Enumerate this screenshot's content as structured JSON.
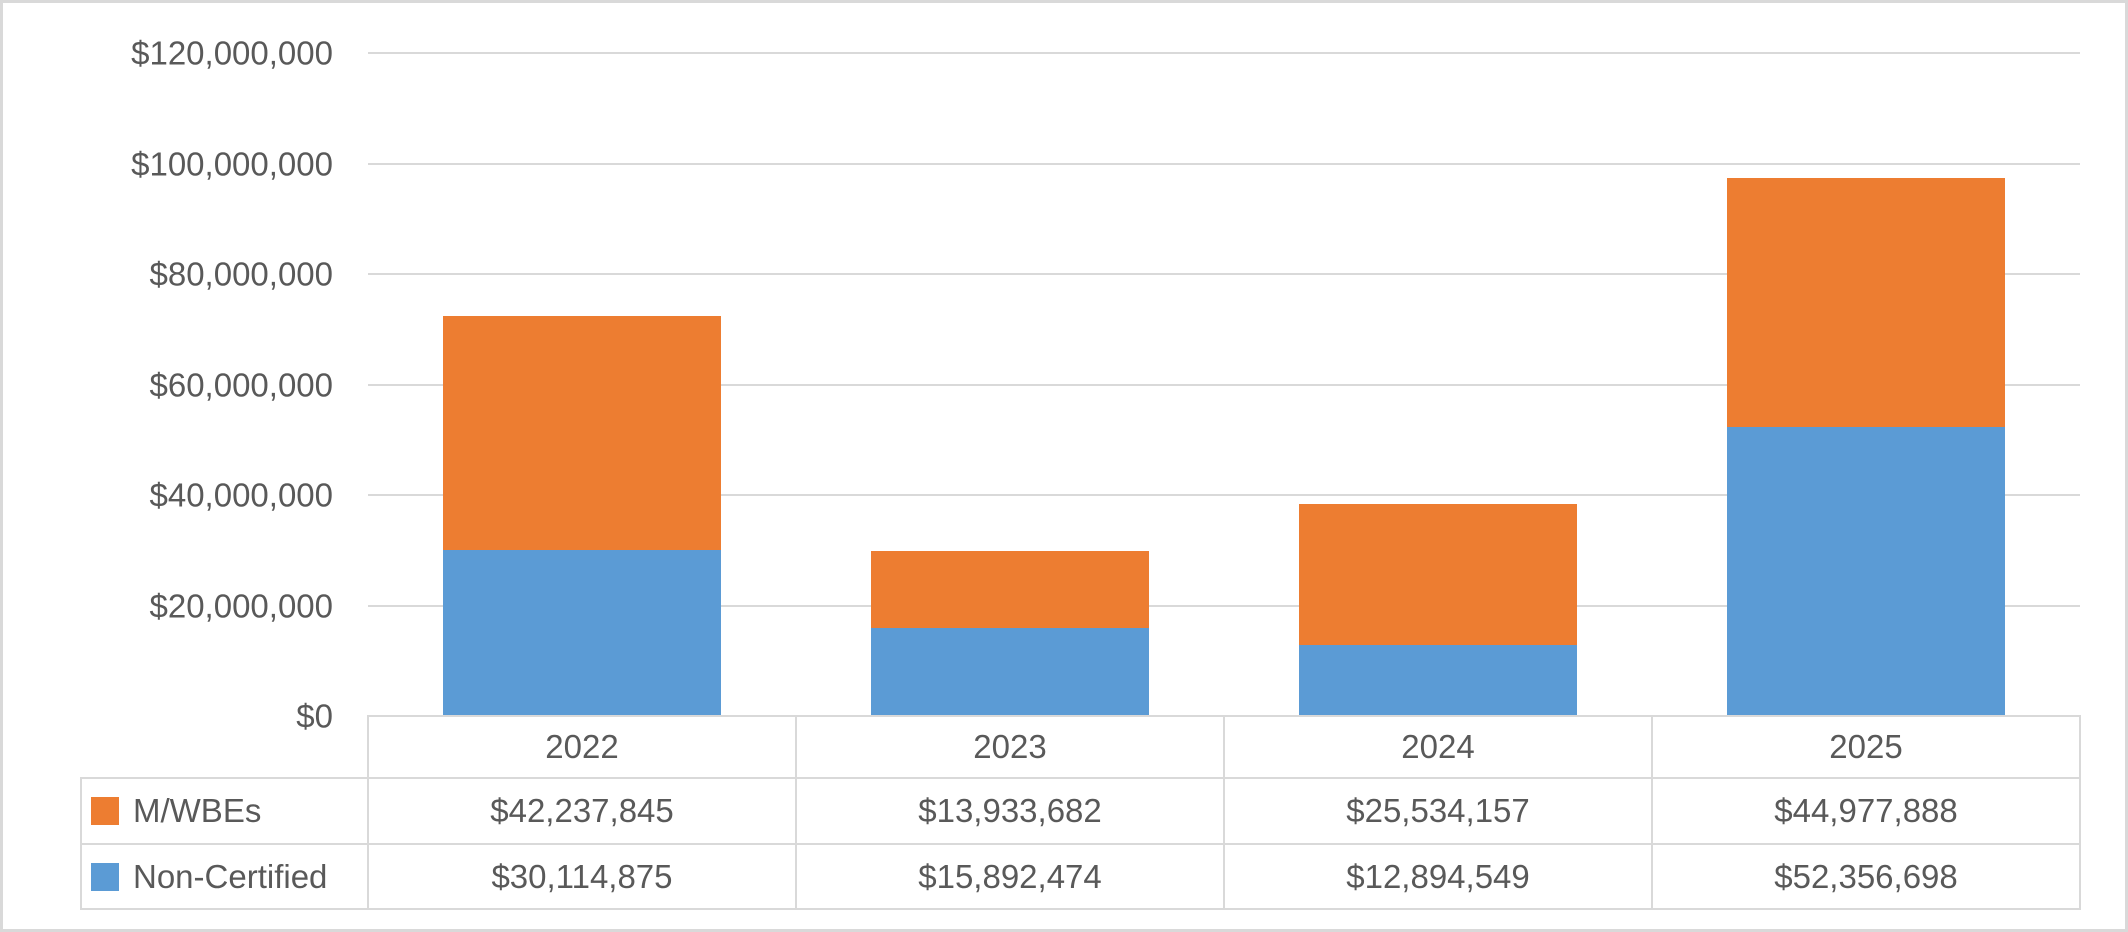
{
  "chart_data": {
    "type": "bar",
    "stacked": true,
    "title": "",
    "categories": [
      "2022",
      "2023",
      "2024",
      "2025"
    ],
    "series": [
      {
        "name": "M/WBEs",
        "color": "#ED7D31",
        "values": [
          42237845,
          13933682,
          25534157,
          44977888
        ],
        "labels": [
          "$42,237,845",
          "$13,933,682",
          "$25,534,157",
          "$44,977,888"
        ]
      },
      {
        "name": "Non-Certified",
        "color": "#5B9BD5",
        "values": [
          30114875,
          15892474,
          12894549,
          52356698
        ],
        "labels": [
          "$30,114,875",
          "$15,892,474",
          "$12,894,549",
          "$52,356,698"
        ]
      }
    ],
    "stack_bottom_series": "Non-Certified",
    "ylim": [
      0,
      120000000
    ],
    "ytick_interval": 20000000,
    "yticks": [
      {
        "value": 120000000,
        "label": "$120,000,000"
      },
      {
        "value": 100000000,
        "label": "$100,000,000"
      },
      {
        "value": 80000000,
        "label": "$80,000,000"
      },
      {
        "value": 60000000,
        "label": "$60,000,000"
      },
      {
        "value": 40000000,
        "label": "$40,000,000"
      },
      {
        "value": 20000000,
        "label": "$20,000,000"
      },
      {
        "value": 0,
        "label": "$0"
      }
    ],
    "xlabel": "",
    "ylabel": "",
    "grid": true,
    "legend_position": "data-table-left",
    "data_table_shown": true,
    "axis_text_color": "#595959",
    "gridline_color": "#D9D9D9",
    "table_border_color": "#D9D9D9",
    "background_color": "#FFFFFF"
  }
}
